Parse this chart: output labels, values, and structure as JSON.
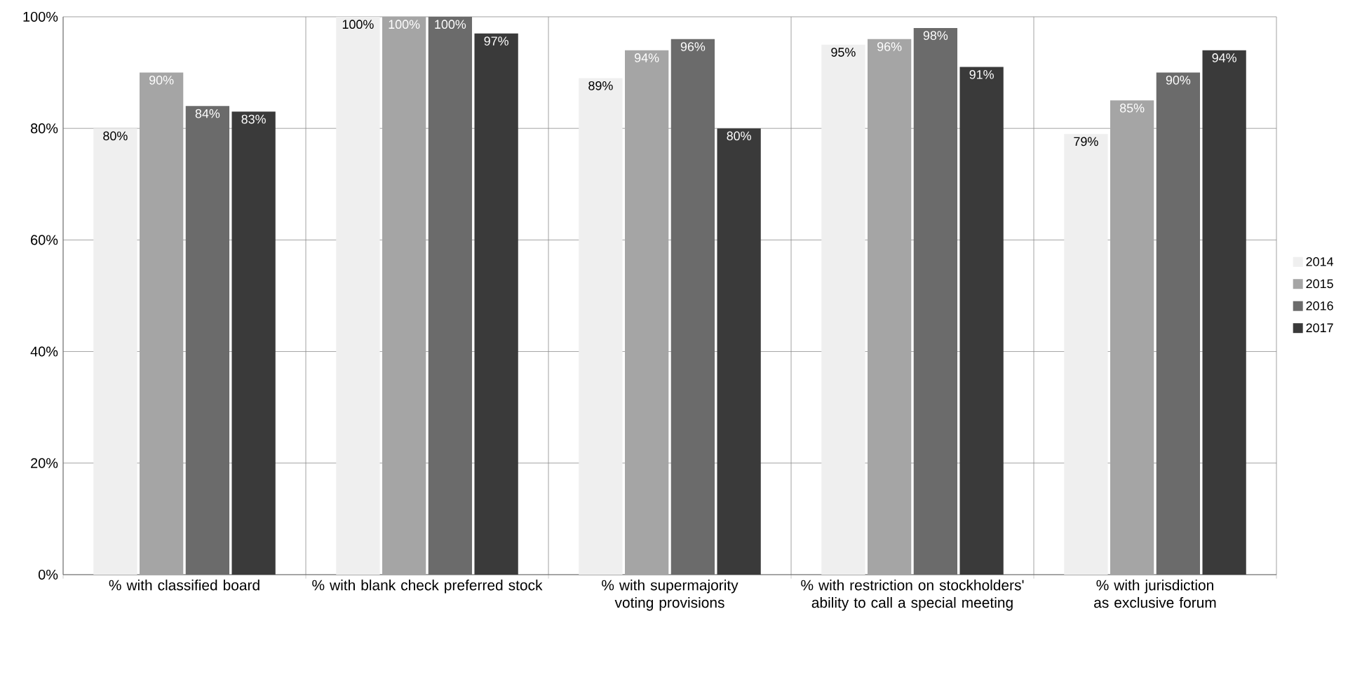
{
  "chart_data": {
    "type": "bar",
    "categories": [
      "% with classified board",
      "% with blank check preferred stock",
      "% with supermajority voting provisions",
      "% with restriction on stockholders' ability to call a special meeting",
      "% with jurisdiction as exclusive forum"
    ],
    "series": [
      {
        "name": "2014",
        "color": "#efefef",
        "values": [
          80,
          100,
          89,
          95,
          79
        ],
        "value_labels": [
          "80%",
          "100%",
          "89%",
          "95%",
          "79%"
        ]
      },
      {
        "name": "2015",
        "color": "#a5a5a5",
        "values": [
          90,
          100,
          94,
          96,
          85
        ],
        "value_labels": [
          "90%",
          "100%",
          "94%",
          "96%",
          "85%"
        ]
      },
      {
        "name": "2016",
        "color": "#6b6b6b",
        "values": [
          84,
          100,
          96,
          98,
          90
        ],
        "value_labels": [
          "84%",
          "100%",
          "96%",
          "98%",
          "90%"
        ]
      },
      {
        "name": "2017",
        "color": "#3a3a3a",
        "values": [
          83,
          97,
          80,
          91,
          94
        ],
        "value_labels": [
          "83%",
          "97%",
          "80%",
          "91%",
          "94%"
        ]
      }
    ],
    "ylim": [
      0,
      100
    ],
    "yticks": [
      {
        "value": 0,
        "label": "0%"
      },
      {
        "value": 20,
        "label": "20%"
      },
      {
        "value": 40,
        "label": "40%"
      },
      {
        "value": 60,
        "label": "60%"
      },
      {
        "value": 80,
        "label": "80%"
      },
      {
        "value": 100,
        "label": "100%"
      }
    ],
    "grid": true,
    "legend": "right"
  }
}
